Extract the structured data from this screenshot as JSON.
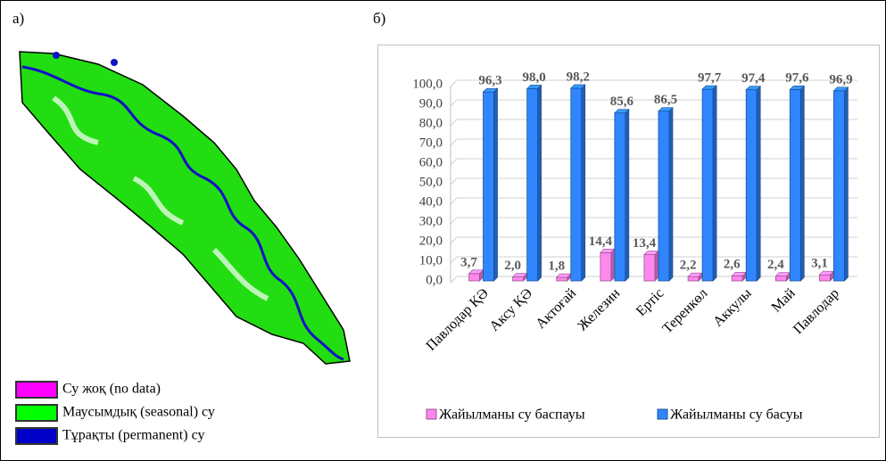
{
  "panel_a": {
    "label": "а)",
    "legend": [
      {
        "label": "Су жоқ (no data)",
        "color": "#ff00ff"
      },
      {
        "label": "Маусымдық (seasonal) су",
        "color": "#00ff00"
      },
      {
        "label": "Тұрақты (permanent) су",
        "color": "#0000c8"
      }
    ]
  },
  "panel_b": {
    "label": "б)"
  },
  "chart_data": {
    "type": "bar",
    "categories": [
      "Павлодар ҚӘ",
      "Аксу ҚӘ",
      "Актоғай",
      "Железин",
      "Ертіс",
      "Теренкөл",
      "Аккулы",
      "Май",
      "Павлодар"
    ],
    "series": [
      {
        "name": "Жайылманы су баспауы",
        "color": "#ff88ee",
        "values": [
          3.7,
          2.0,
          1.8,
          14.4,
          13.4,
          2.2,
          2.6,
          2.4,
          3.1
        ],
        "value_labels": [
          "3,7",
          "2,0",
          "1,8",
          "14,4",
          "13,4",
          "2,2",
          "2,6",
          "2,4",
          "3,1"
        ]
      },
      {
        "name": "Жайылманы су басуы",
        "color": "#2f86ff",
        "values": [
          96.3,
          98.0,
          98.2,
          85.6,
          86.5,
          97.7,
          97.4,
          97.6,
          96.9
        ],
        "value_labels": [
          "96,3",
          "98,0",
          "98,2",
          "85,6",
          "86,5",
          "97,7",
          "97,4",
          "97,6",
          "96,9"
        ]
      }
    ],
    "ylim": [
      0,
      100
    ],
    "yticks": [
      {
        "value": 0,
        "label": "0,0"
      },
      {
        "value": 10,
        "label": "10,0"
      },
      {
        "value": 20,
        "label": "20,0"
      },
      {
        "value": 30,
        "label": "30,0"
      },
      {
        "value": 40,
        "label": "40,0"
      },
      {
        "value": 50,
        "label": "50,0"
      },
      {
        "value": 60,
        "label": "60,0"
      },
      {
        "value": 70,
        "label": "70,0"
      },
      {
        "value": 80,
        "label": "80,0"
      },
      {
        "value": 90,
        "label": "90,0"
      },
      {
        "value": 100,
        "label": "100,0"
      }
    ],
    "grid": true,
    "legend": "bottom"
  }
}
